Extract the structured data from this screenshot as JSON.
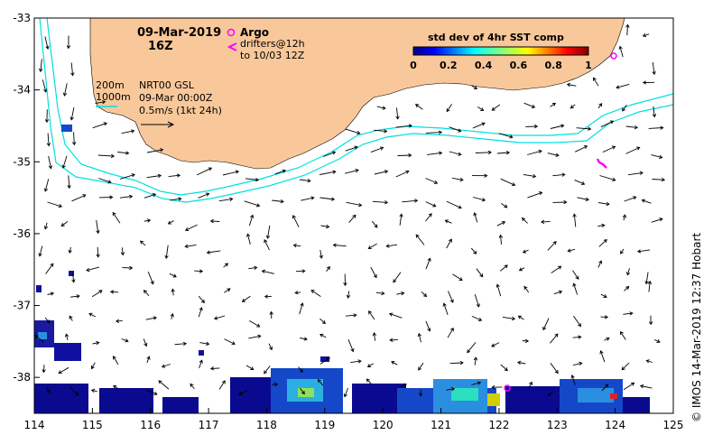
{
  "map": {
    "lon_range": [
      114,
      125
    ],
    "lat_range": [
      -38.5,
      -33
    ],
    "x_ticks": [
      "114",
      "115",
      "116",
      "117",
      "118",
      "119",
      "120",
      "121",
      "122",
      "123",
      "124",
      "125"
    ],
    "y_ticks": [
      "-33",
      "-34",
      "-35",
      "-36",
      "-37",
      "-38"
    ],
    "land_color": "#f9c89a",
    "water_color": "#ffffff",
    "isobath_color": "#00e0e0"
  },
  "header": {
    "date": "09-Mar-2019",
    "hour": "16Z"
  },
  "legend": {
    "argo_label": "Argo",
    "drifters_line1": "drifters@12h",
    "drifters_line2": "to 10/03 12Z",
    "argo_color": "#ff00ff",
    "drifter_color": "#ff00ff"
  },
  "info": {
    "isobath1": "200m",
    "isobath2": "1000m",
    "product": "NRT00 GSL",
    "analysis": "09-Mar 00:00Z",
    "scale": "0.5m/s (1kt 24h)"
  },
  "colorbar": {
    "title": "std dev of 4hr SST comp",
    "ticks": [
      "0",
      "0.2",
      "0.4",
      "0.6",
      "0.8",
      "1"
    ]
  },
  "credit": "© IMOS 14-Mar-2019 12:37 Hobart"
}
